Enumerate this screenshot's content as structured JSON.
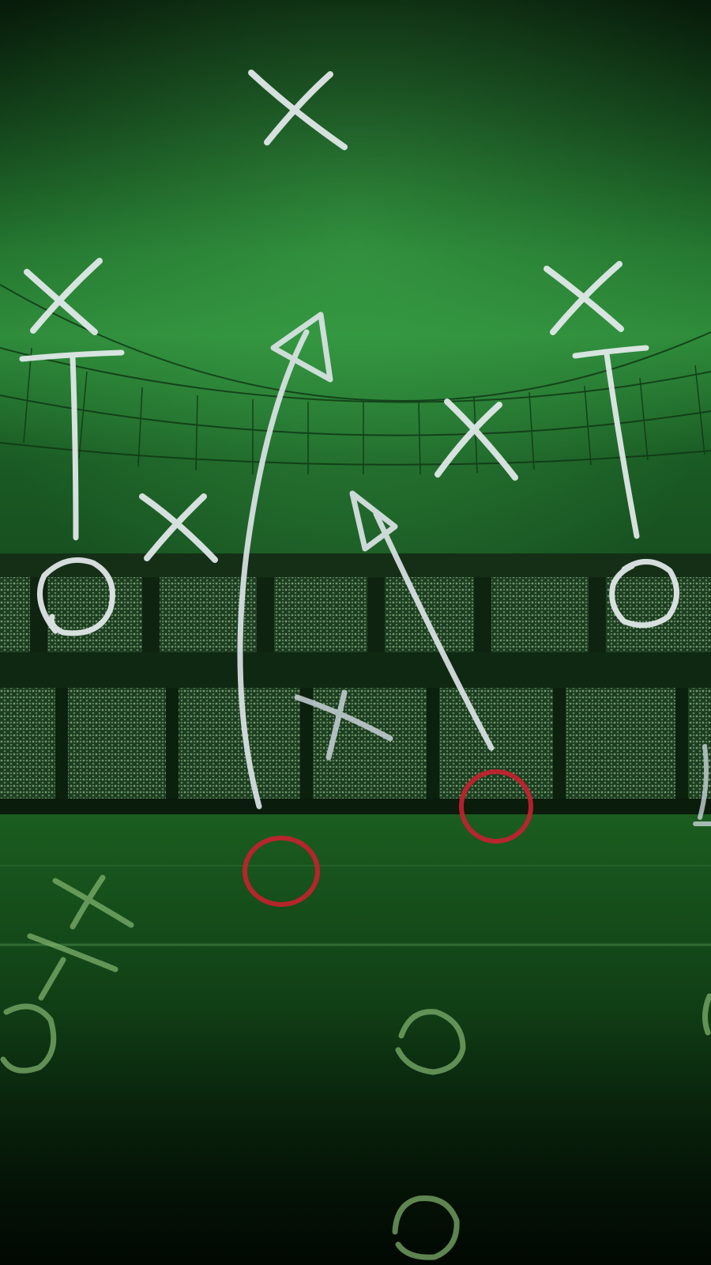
{
  "scene": {
    "subject": "stadium-play-diagram",
    "colors": {
      "sky_top": "#0c2a10",
      "sky_glow": "#2f8f3a",
      "stands": "#1c3d1f",
      "pitch": "#15501c",
      "pitch_dark": "#06180a",
      "chalk_white": "#e8eef0",
      "chalk_red": "#c8202e",
      "chalk_faded": "#7fb070"
    }
  }
}
